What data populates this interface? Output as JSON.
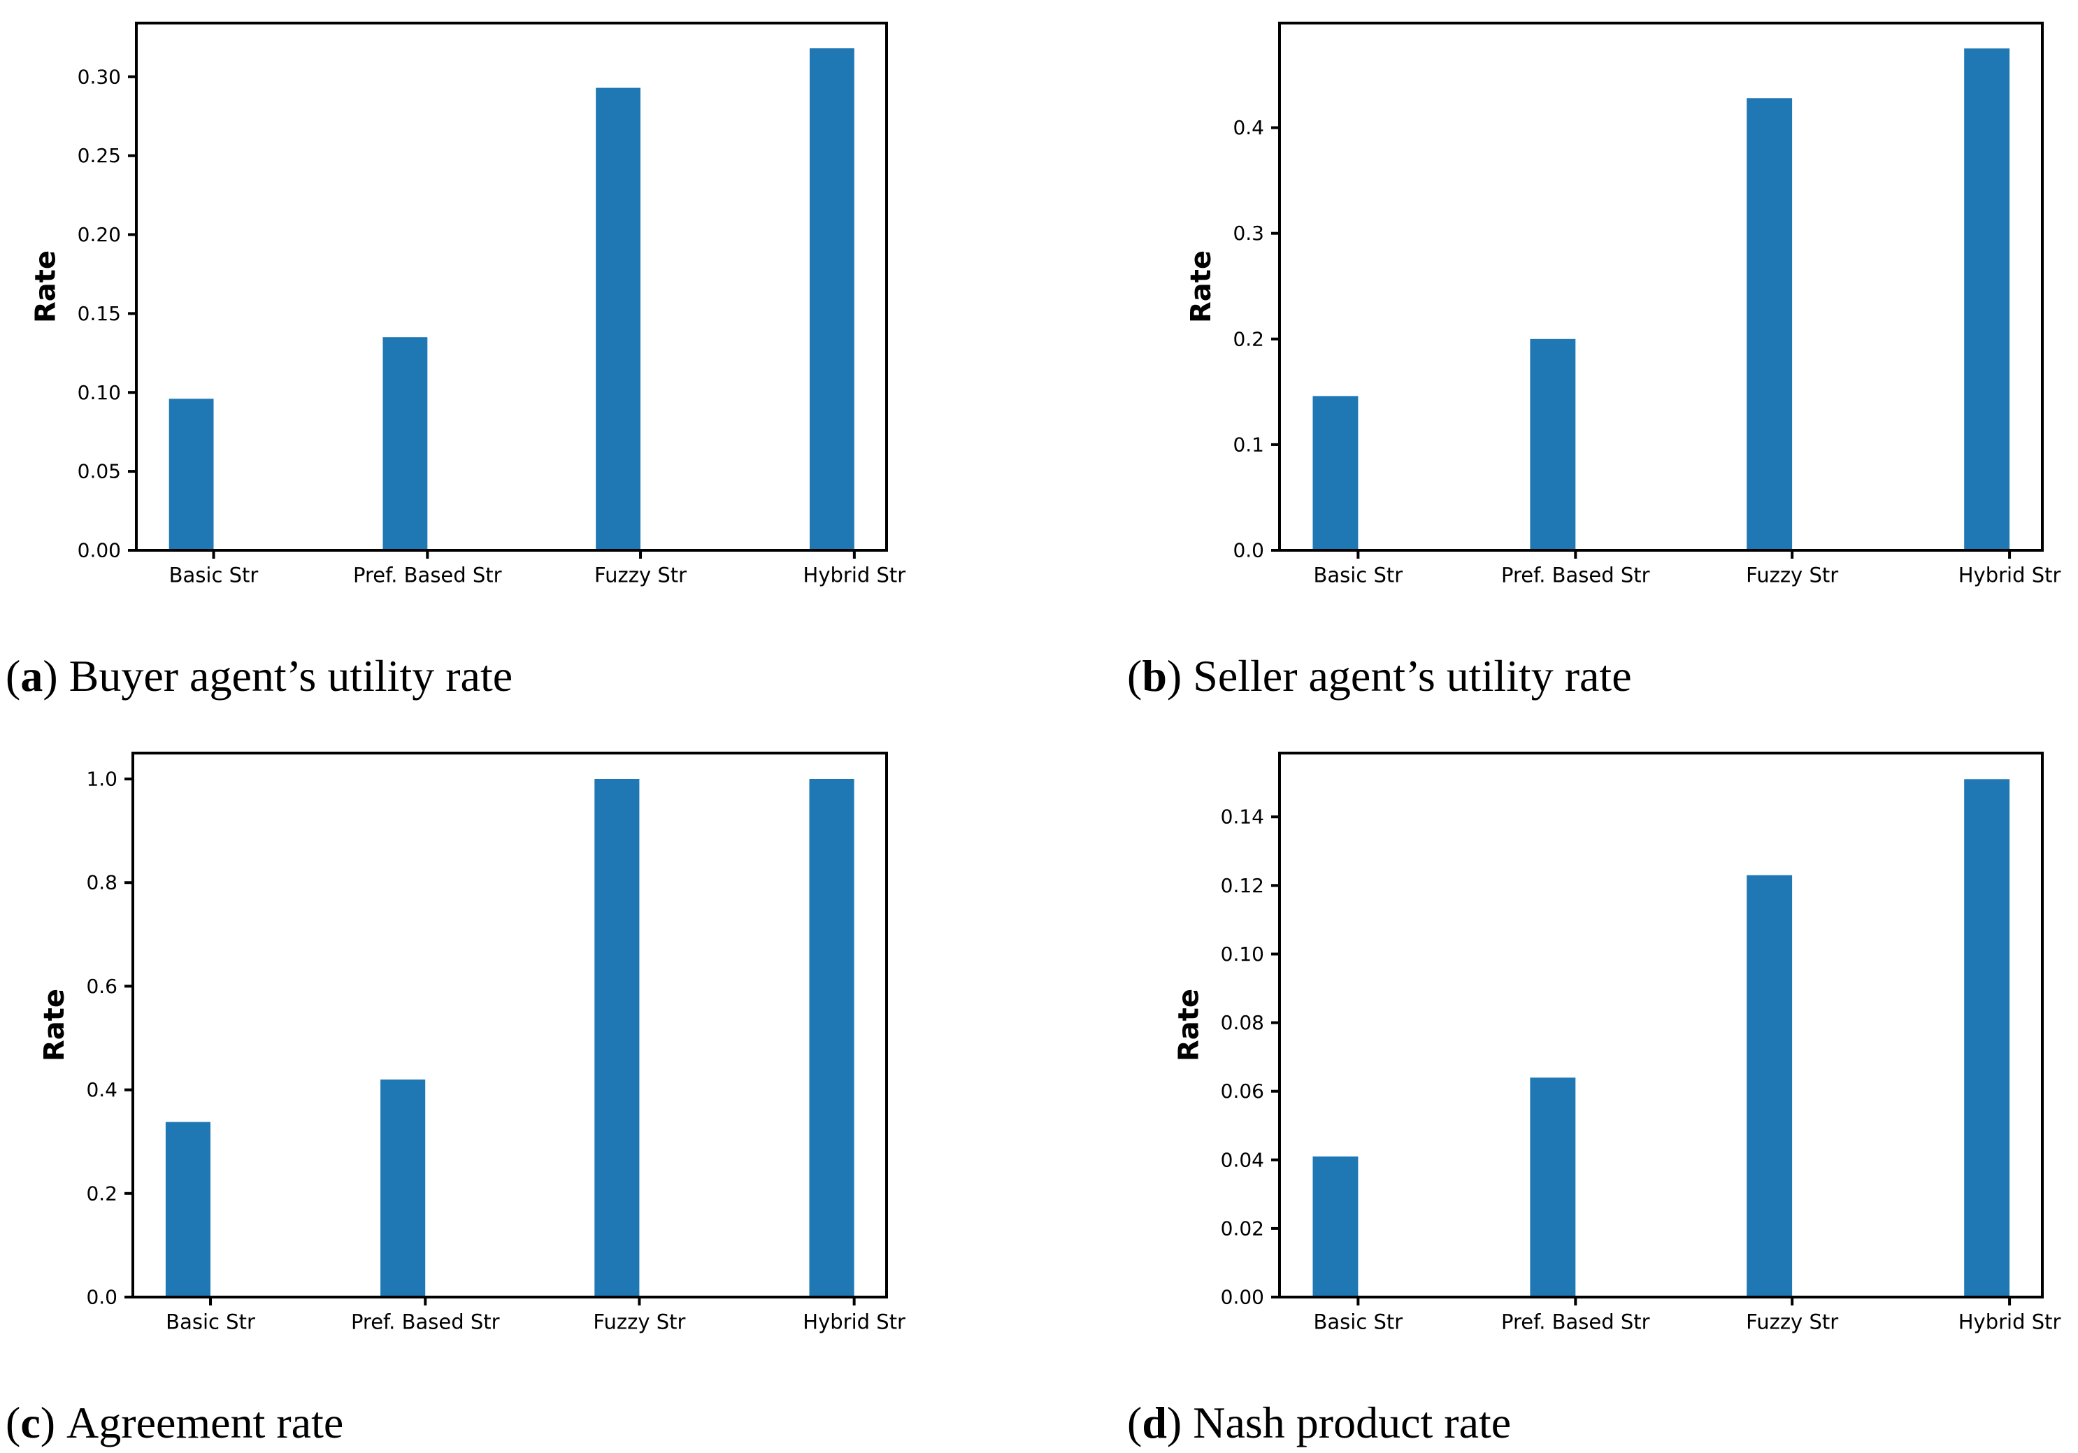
{
  "figure": {
    "bar_color": "#1f77b4",
    "axis_color": "#000000",
    "background_color": "#ffffff",
    "caption_open": "(",
    "caption_close": ")"
  },
  "chart_data": [
    {
      "type": "bar",
      "caption_letter": "a",
      "caption_text": "Buyer agent’s utility rate",
      "categories": [
        "Basic Str",
        "Pref. Based Str",
        "Fuzzy Str",
        "Hybrid Str"
      ],
      "values": [
        0.096,
        0.135,
        0.293,
        0.318
      ],
      "xlabel": "",
      "ylabel": "Rate",
      "ylim": [
        0,
        0.334
      ],
      "yticks": [
        0.0,
        0.05,
        0.1,
        0.15,
        0.2,
        0.25,
        0.3
      ],
      "ytick_labels": [
        "0.00",
        "0.05",
        "0.10",
        "0.15",
        "0.20",
        "0.25",
        "0.30"
      ],
      "grid": false,
      "legend": null
    },
    {
      "type": "bar",
      "caption_letter": "b",
      "caption_text": "Seller agent’s utility rate",
      "categories": [
        "Basic Str",
        "Pref. Based Str",
        "Fuzzy Str",
        "Hybrid Str"
      ],
      "values": [
        0.146,
        0.2,
        0.428,
        0.475
      ],
      "xlabel": "",
      "ylabel": "Rate",
      "ylim": [
        0,
        0.499
      ],
      "yticks": [
        0.0,
        0.1,
        0.2,
        0.3,
        0.4
      ],
      "ytick_labels": [
        "0.0",
        "0.1",
        "0.2",
        "0.3",
        "0.4"
      ],
      "grid": false,
      "legend": null
    },
    {
      "type": "bar",
      "caption_letter": "c",
      "caption_text": "Agreement rate",
      "categories": [
        "Basic Str",
        "Pref. Based Str",
        "Fuzzy Str",
        "Hybrid Str"
      ],
      "values": [
        0.338,
        0.42,
        1.0,
        1.0
      ],
      "xlabel": "",
      "ylabel": "Rate",
      "ylim": [
        0,
        1.05
      ],
      "yticks": [
        0.0,
        0.2,
        0.4,
        0.6,
        0.8,
        1.0
      ],
      "ytick_labels": [
        "0.0",
        "0.2",
        "0.4",
        "0.6",
        "0.8",
        "1.0"
      ],
      "grid": false,
      "legend": null
    },
    {
      "type": "bar",
      "caption_letter": "d",
      "caption_text": "Nash product rate",
      "categories": [
        "Basic Str",
        "Pref. Based Str",
        "Fuzzy Str",
        "Hybrid Str"
      ],
      "values": [
        0.041,
        0.064,
        0.123,
        0.151
      ],
      "xlabel": "",
      "ylabel": "Rate",
      "ylim": [
        0,
        0.1586
      ],
      "yticks": [
        0.0,
        0.02,
        0.04,
        0.06,
        0.08,
        0.1,
        0.12,
        0.14
      ],
      "ytick_labels": [
        "0.00",
        "0.02",
        "0.04",
        "0.06",
        "0.08",
        "0.10",
        "0.12",
        "0.14"
      ],
      "grid": false,
      "legend": null
    }
  ]
}
